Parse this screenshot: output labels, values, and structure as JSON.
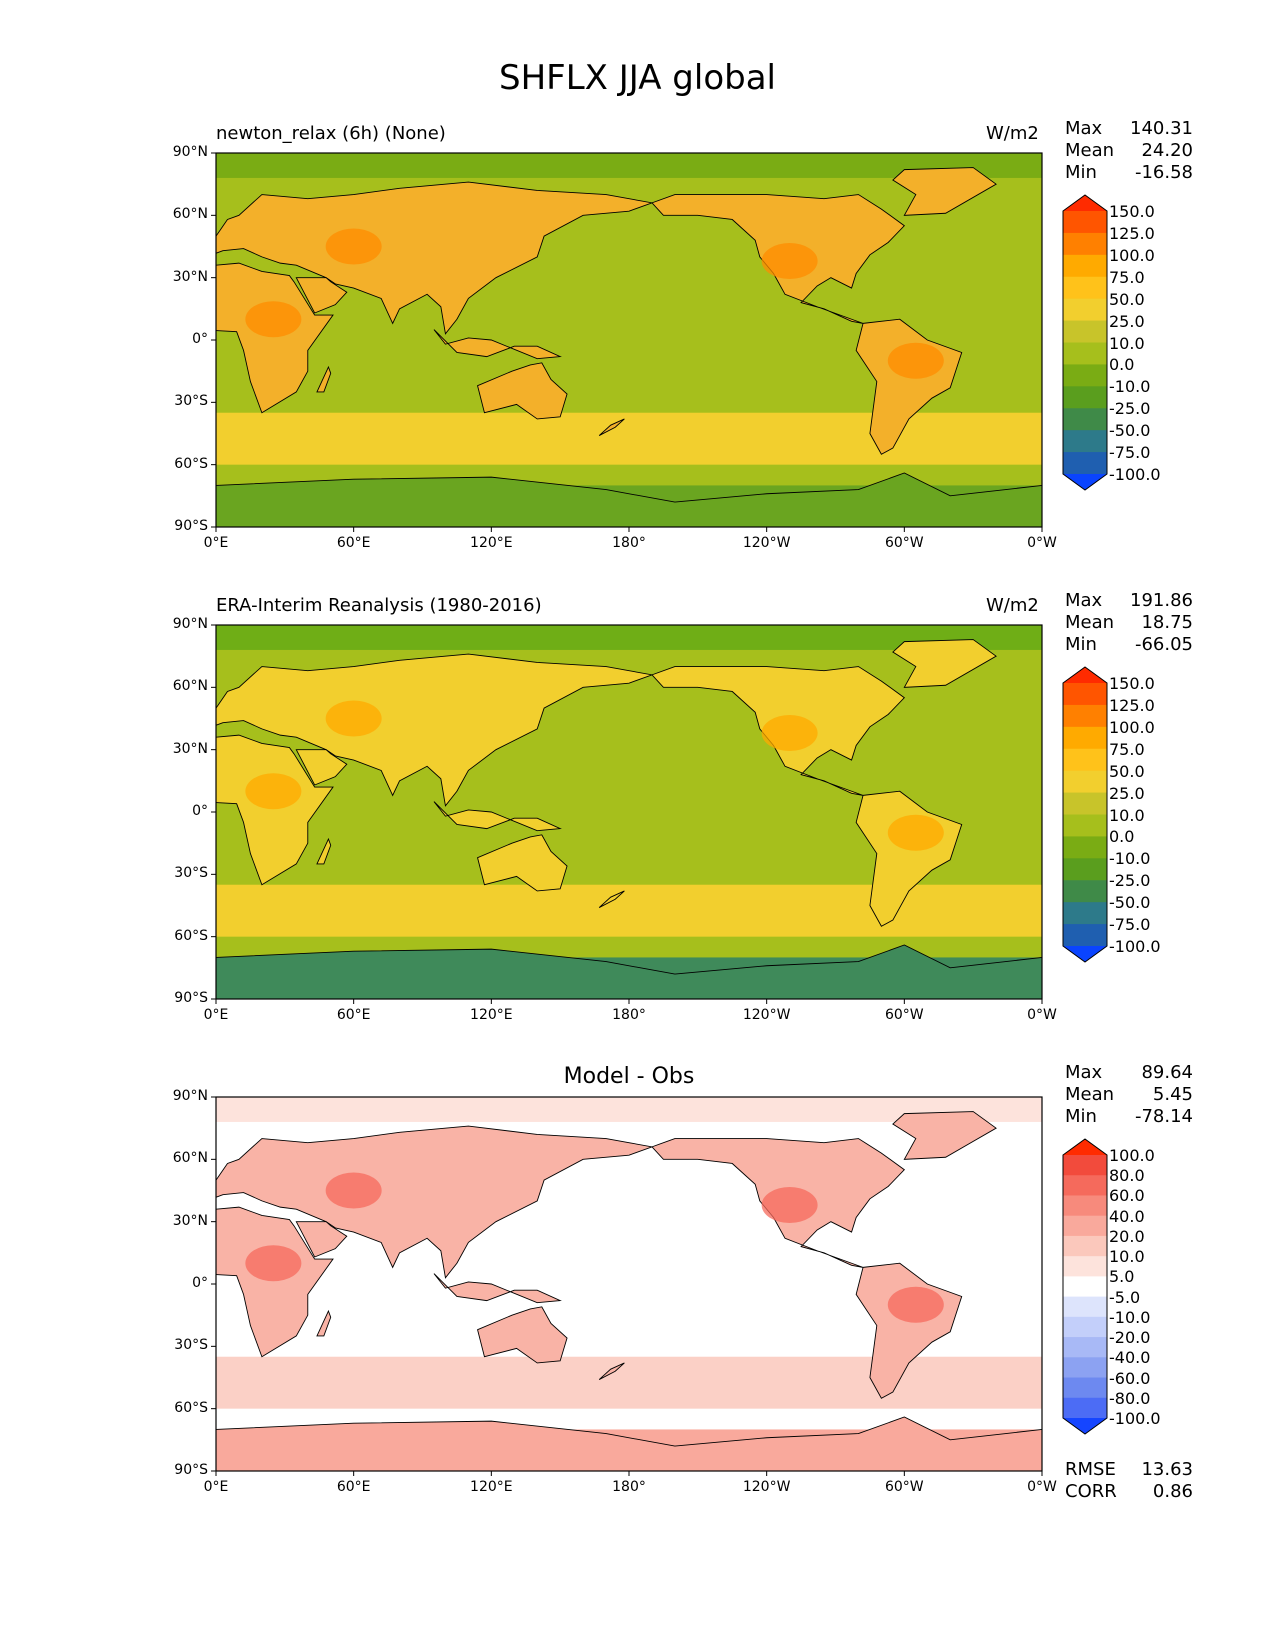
{
  "figure": {
    "title": "SHFLX JJA global",
    "x_ticks": [
      "0°E",
      "60°E",
      "120°E",
      "180°",
      "120°W",
      "60°W",
      "0°W"
    ],
    "y_ticks": [
      "90°N",
      "60°N",
      "30°N",
      "0°",
      "30°S",
      "60°S",
      "90°S"
    ]
  },
  "chart_data": [
    {
      "type": "heatmap",
      "panel": "test",
      "title": "newton_relax (6h) (None)",
      "units": "W/m2",
      "stats": [
        {
          "label": "Max",
          "value": "140.31"
        },
        {
          "label": "Mean",
          "value": "24.20"
        },
        {
          "label": "Min",
          "value": "-16.58"
        }
      ],
      "xlim": [
        0,
        360
      ],
      "ylim": [
        -90,
        90
      ],
      "colorbar": {
        "levels": [
          "150.0",
          "125.0",
          "100.0",
          "75.0",
          "50.0",
          "25.0",
          "10.0",
          "0.0",
          "-10.0",
          "-25.0",
          "-50.0",
          "-75.0",
          "-100.0"
        ],
        "colors": [
          "#ff2b00",
          "#ff5500",
          "#ff8000",
          "#ffaa00",
          "#ffc21a",
          "#f2cf2e",
          "#c8c42a",
          "#a6bf1c",
          "#7aac14",
          "#5a9e1e",
          "#3f8a48",
          "#2d7a8a",
          "#1f5fb0",
          "#0a44ff"
        ]
      }
    },
    {
      "type": "heatmap",
      "panel": "reference",
      "title": "ERA-Interim Reanalysis (1980-2016)",
      "units": "W/m2",
      "stats": [
        {
          "label": "Max",
          "value": "191.86"
        },
        {
          "label": "Mean",
          "value": "18.75"
        },
        {
          "label": "Min",
          "value": "-66.05"
        }
      ],
      "xlim": [
        0,
        360
      ],
      "ylim": [
        -90,
        90
      ],
      "colorbar": {
        "levels": [
          "150.0",
          "125.0",
          "100.0",
          "75.0",
          "50.0",
          "25.0",
          "10.0",
          "0.0",
          "-10.0",
          "-25.0",
          "-50.0",
          "-75.0",
          "-100.0"
        ],
        "colors": [
          "#ff2b00",
          "#ff5500",
          "#ff8000",
          "#ffaa00",
          "#ffc21a",
          "#f2cf2e",
          "#c8c42a",
          "#a6bf1c",
          "#7aac14",
          "#5a9e1e",
          "#3f8a48",
          "#2d7a8a",
          "#1f5fb0",
          "#0a44ff"
        ]
      }
    },
    {
      "type": "heatmap",
      "panel": "difference",
      "title": "Model - Obs",
      "units": "",
      "stats": [
        {
          "label": "Max",
          "value": "89.64"
        },
        {
          "label": "Mean",
          "value": "5.45"
        },
        {
          "label": "Min",
          "value": "-78.14"
        }
      ],
      "extra_stats": [
        {
          "label": "RMSE",
          "value": "13.63"
        },
        {
          "label": "CORR",
          "value": "0.86"
        }
      ],
      "xlim": [
        0,
        360
      ],
      "ylim": [
        -90,
        90
      ],
      "colorbar": {
        "levels": [
          "100.0",
          "80.0",
          "60.0",
          "40.0",
          "20.0",
          "10.0",
          "5.0",
          "-5.0",
          "-10.0",
          "-20.0",
          "-40.0",
          "-60.0",
          "-80.0",
          "-100.0"
        ],
        "colors": [
          "#ff2b00",
          "#f24b3c",
          "#f56a5c",
          "#f78a7c",
          "#f9a99c",
          "#fbc8bc",
          "#fde3dc",
          "#ffffff",
          "#dde4fc",
          "#c3cffa",
          "#a8b9f6",
          "#8ca2f2",
          "#6d89f0",
          "#4c6cf5",
          "#1545ff"
        ]
      }
    }
  ]
}
